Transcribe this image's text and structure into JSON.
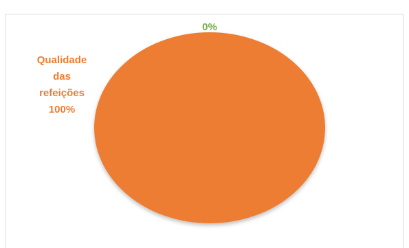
{
  "chart_data": {
    "type": "pie",
    "categories": [
      "Qualidade das refeições",
      null
    ],
    "values": [
      100,
      0
    ],
    "value_labels": [
      "100%",
      "0%"
    ],
    "colors": [
      "#ED7D31",
      "#70AD47"
    ]
  }
}
